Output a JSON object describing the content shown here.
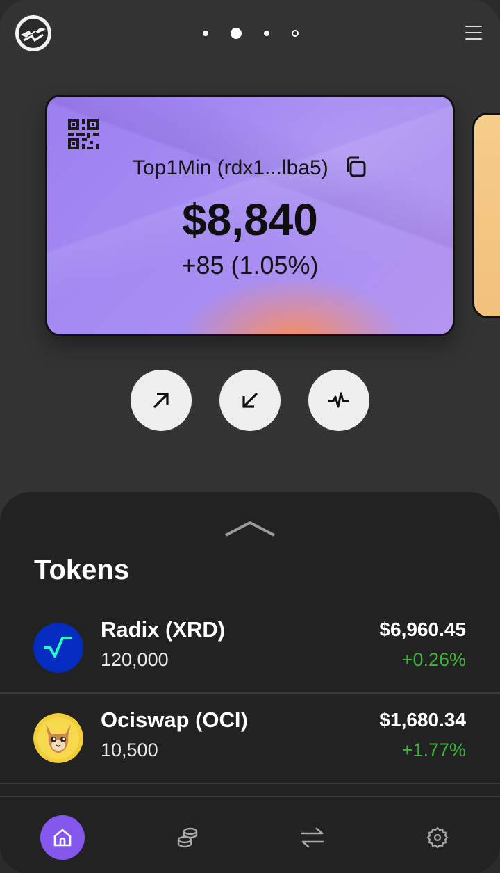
{
  "header": {
    "logo_icon": "radix-logo-icon",
    "pager": {
      "count": 4,
      "active_index": 1
    },
    "menu_icon": "hamburger-menu-icon"
  },
  "wallet_card": {
    "account_name": "Top1Min",
    "address_short": "(rdx1...lba5)",
    "balance": "$8,840",
    "change": "+85 (1.05%)",
    "qr_icon": "qr-code-icon",
    "copy_icon": "copy-icon",
    "accent": "#9d7ff0"
  },
  "actions": [
    {
      "name": "send",
      "icon": "arrow-up-right-icon"
    },
    {
      "name": "receive",
      "icon": "arrow-down-left-icon"
    },
    {
      "name": "activity",
      "icon": "activity-pulse-icon"
    }
  ],
  "tokens": {
    "title": "Tokens",
    "items": [
      {
        "name": "Radix (XRD)",
        "amount": "120,000",
        "value": "$6,960.45",
        "change": "+0.26%",
        "icon": "radix-token-icon"
      },
      {
        "name": "Ociswap (OCI)",
        "amount": "10,500",
        "value": "$1,680.34",
        "change": "+1.77%",
        "icon": "ociswap-token-icon"
      }
    ]
  },
  "tabbar": {
    "items": [
      {
        "name": "home",
        "icon": "home-icon",
        "active": true
      },
      {
        "name": "tokens",
        "icon": "coins-icon",
        "active": false
      },
      {
        "name": "swap",
        "icon": "swap-arrows-icon",
        "active": false
      },
      {
        "name": "settings",
        "icon": "gear-icon",
        "active": false
      }
    ],
    "active_color": "#8458ec"
  },
  "colors": {
    "positive": "#3cb53a",
    "background": "#333333",
    "sheet": "#222222"
  }
}
